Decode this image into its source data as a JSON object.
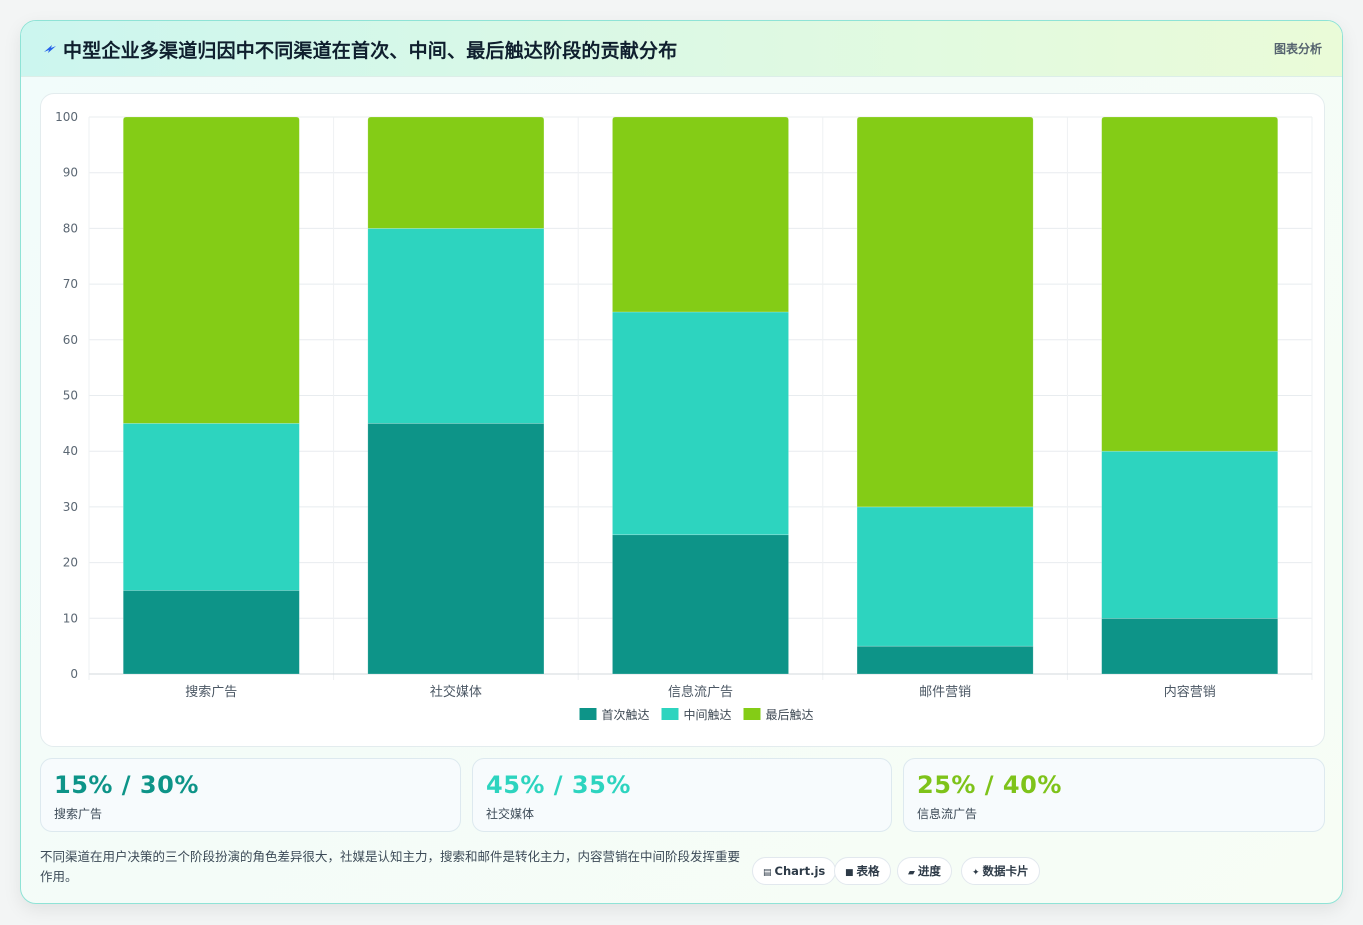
{
  "header": {
    "title": "中型企业多渠道归因中不同渠道在首次、中间、最后触达阶段的贡献分布",
    "tag": "图表分析"
  },
  "colors": {
    "first": "#0d9488",
    "middle": "#2dd4bf",
    "last": "#84cc16",
    "kpi_1": "#0d9488",
    "kpi_2": "#2dd4bf",
    "kpi_3": "#7ec31a"
  },
  "chart_data": {
    "type": "bar",
    "stacked": true,
    "categories": [
      "搜索广告",
      "社交媒体",
      "信息流广告",
      "邮件营销",
      "内容营销"
    ],
    "series": [
      {
        "name": "首次触达",
        "values": [
          15,
          45,
          25,
          5,
          10
        ]
      },
      {
        "name": "中间触达",
        "values": [
          30,
          35,
          40,
          25,
          30
        ]
      },
      {
        "name": "最后触达",
        "values": [
          55,
          20,
          35,
          70,
          60
        ]
      }
    ],
    "ylim": [
      0,
      100
    ],
    "yticks": [
      0,
      10,
      20,
      30,
      40,
      50,
      60,
      70,
      80,
      90,
      100
    ],
    "grid": true,
    "legend": "bottom-center"
  },
  "kpis": [
    {
      "value": "15% / 30%",
      "label": "搜索广告"
    },
    {
      "value": "45% / 35%",
      "label": "社交媒体"
    },
    {
      "value": "25% / 40%",
      "label": "信息流广告"
    }
  ],
  "note": "不同渠道在用户决策的三个阶段扮演的角色差异很大，社媒是认知主力，搜索和邮件是转化主力，内容营销在中间阶段发挥重要作用。",
  "chips": [
    {
      "icon": "chart-icon",
      "glyph": "▤",
      "label": "Chart.js"
    },
    {
      "icon": "table-icon",
      "glyph": "■",
      "label": "表格"
    },
    {
      "icon": "progress-icon",
      "glyph": "▰",
      "label": "进度"
    },
    {
      "icon": "sparkle-icon",
      "glyph": "✦",
      "label": "数据卡片"
    }
  ]
}
